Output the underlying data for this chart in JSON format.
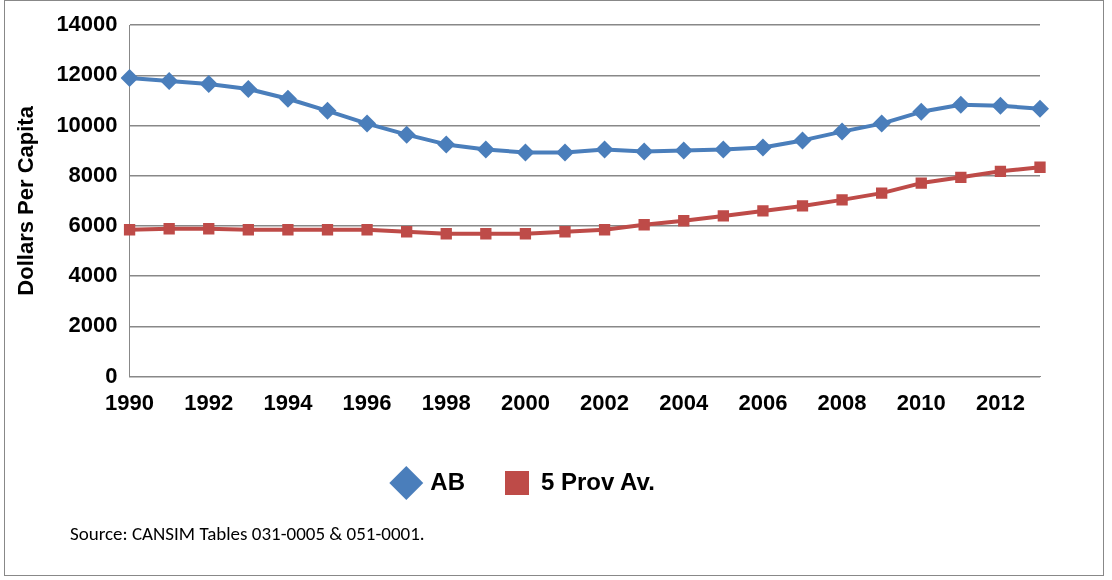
{
  "chart_data": {
    "type": "line",
    "ylabel": "Dollars Per Capita",
    "categories": [
      "1990",
      null,
      "1992",
      null,
      "1994",
      null,
      "1996",
      null,
      "1998",
      null,
      "2000",
      null,
      "2002",
      null,
      "2004",
      null,
      "2006",
      null,
      "2008",
      null,
      "2010",
      null,
      "2012",
      null
    ],
    "series": [
      {
        "name": "AB",
        "color": "#4a7ebb",
        "marker": "diamond",
        "values": [
          11900,
          11780,
          11660,
          11460,
          11070,
          10590,
          10080,
          9640,
          9250,
          9050,
          8930,
          8930,
          9050,
          8970,
          9010,
          9050,
          9130,
          9410,
          9760,
          10080,
          10550,
          10830,
          10790,
          10670
        ]
      },
      {
        "name": "5 Prov Av.",
        "color": "#be4b48",
        "marker": "square",
        "values": [
          5850,
          5890,
          5890,
          5850,
          5850,
          5850,
          5850,
          5770,
          5690,
          5690,
          5690,
          5770,
          5850,
          6050,
          6210,
          6400,
          6600,
          6800,
          7040,
          7310,
          7710,
          7940,
          8180,
          8340
        ]
      }
    ],
    "ylim": [
      0,
      14000
    ],
    "yticks": [
      0,
      2000,
      4000,
      6000,
      8000,
      10000,
      12000,
      14000
    ],
    "grid": "y",
    "legend": "bottom",
    "annotations": [
      "Source: CANSIM Tables 031-0005 & 051-0001."
    ]
  }
}
